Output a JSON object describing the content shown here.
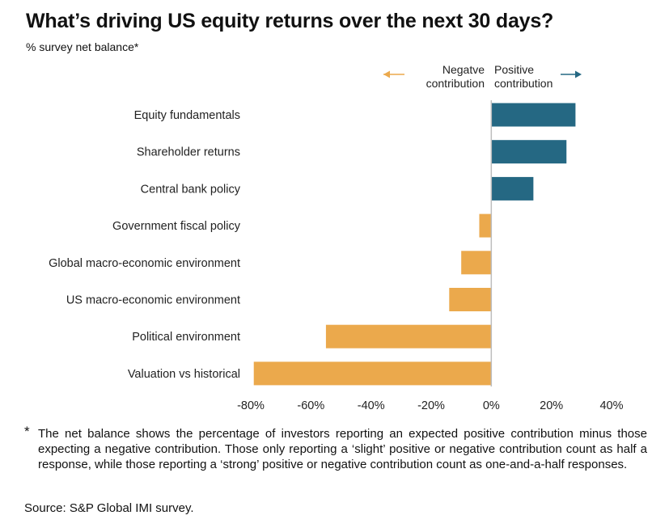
{
  "title": "What’s driving US equity returns over the next 30 days?",
  "subtitle": "% survey net balance*",
  "legend": {
    "negative_line1": "Negatve",
    "negative_line2": "contribution",
    "positive_line1": "Positive",
    "positive_line2": "contribution"
  },
  "colors": {
    "positive": "#256883",
    "negative": "#EBA94C"
  },
  "chart_data": {
    "type": "bar",
    "orientation": "horizontal",
    "title": "What’s driving US equity returns over the next 30 days?",
    "xlabel": "% survey net balance",
    "ylabel": "",
    "xlim": [
      -80,
      40
    ],
    "xticks": [
      -80,
      -60,
      -40,
      -20,
      0,
      20,
      40
    ],
    "tick_labels": [
      "-80%",
      "-60%",
      "-40%",
      "-20%",
      "0%",
      "20%",
      "40%"
    ],
    "categories": [
      "Equity fundamentals",
      "Shareholder returns",
      "Central bank policy",
      "Government fiscal policy",
      "Global macro-economic environment",
      "US macro-economic environment",
      "Political environment",
      "Valuation vs historical"
    ],
    "values": [
      28,
      25,
      14,
      -4,
      -10,
      -14,
      -55,
      -79
    ],
    "grid": false
  },
  "footnote": {
    "marker": "*",
    "text": "The net balance shows the percentage of investors reporting an expected positive contribution minus those expecting a negative contribution. Those only reporting a ‘slight’ positive or negative contribution count as half a response, while those reporting a ‘strong’ positive or negative contribution count as one-and-a-half responses."
  },
  "source": "Source: S&P Global IMI survey."
}
